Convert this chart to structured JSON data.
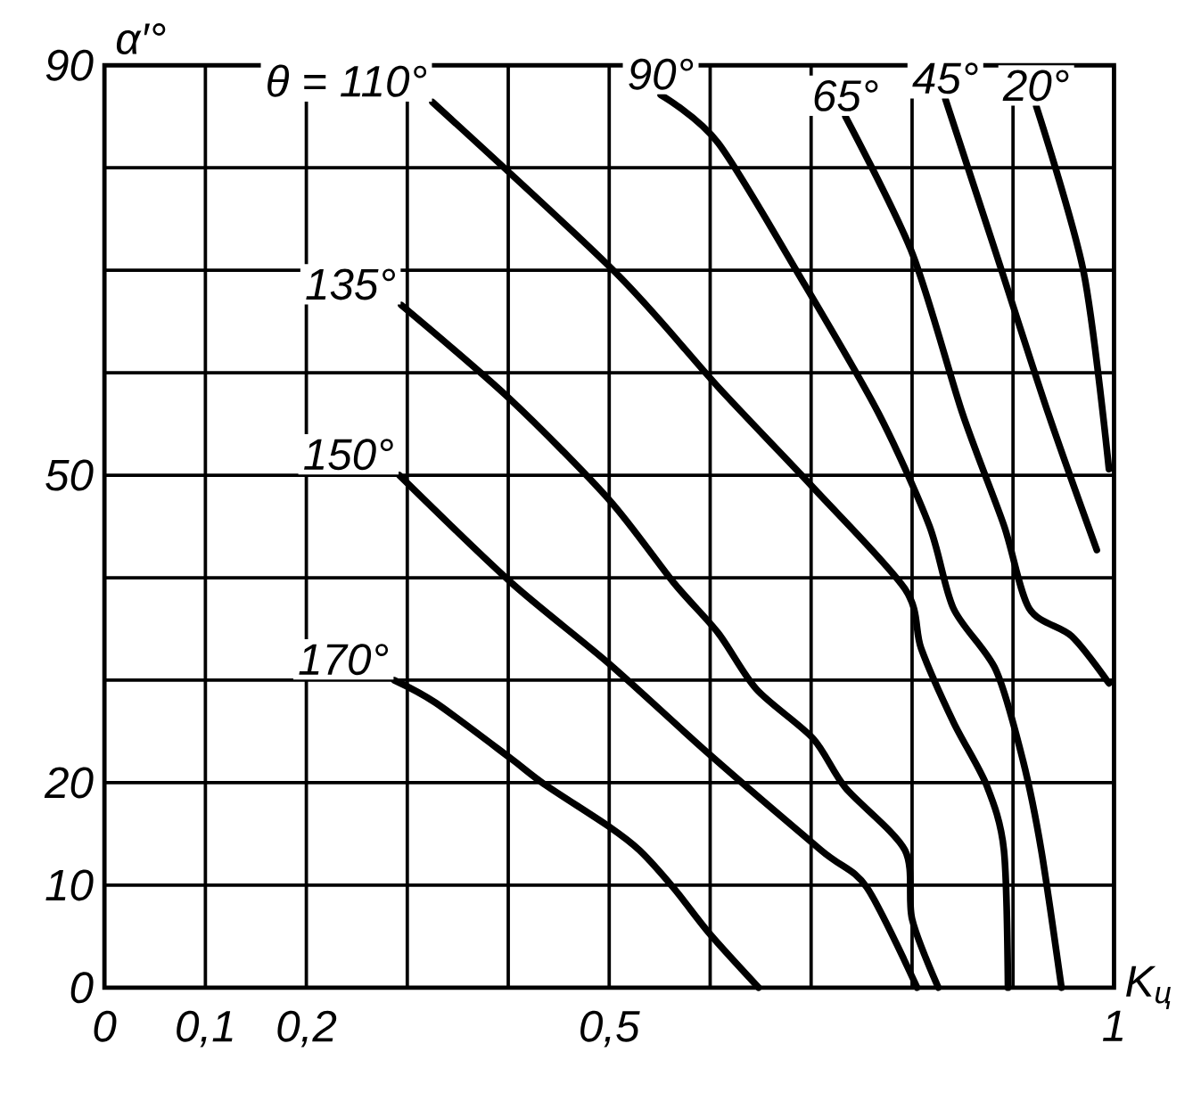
{
  "chart_data": {
    "type": "line",
    "xlabel": "K$_{ц}$",
    "ylabel": "α′°",
    "xlim": [
      0,
      1
    ],
    "ylim": [
      0,
      90
    ],
    "xticks": [
      0,
      {
        "value": 0.1,
        "label": "0,1"
      },
      {
        "value": 0.2,
        "label": "0,2"
      },
      {
        "value": 0.3,
        "label": null
      },
      {
        "value": 0.4,
        "label": null
      },
      {
        "value": 0.5,
        "label": "0,5"
      },
      {
        "value": 0.6,
        "label": null
      },
      {
        "value": 0.7,
        "label": null
      },
      {
        "value": 0.8,
        "label": null
      },
      {
        "value": 0.9,
        "label": null
      },
      1
    ],
    "yticks": [
      0,
      10,
      20,
      {
        "value": 30,
        "label": null
      },
      {
        "value": 40,
        "label": null
      },
      50,
      {
        "value": 60,
        "label": null
      },
      {
        "value": 70,
        "label": null
      },
      {
        "value": 80,
        "label": null
      },
      90
    ],
    "grid": true,
    "line_style": "solid",
    "series": [
      {
        "name": "θ = 110°",
        "color": "#000000",
        "x": [
          0.325,
          0.506,
          0.608,
          0.702,
          0.793,
          0.809,
          0.841,
          0.874,
          0.891,
          0.895
        ],
        "values": [
          86.4,
          69.8,
          58.6,
          48.8,
          38.9,
          33.1,
          25.9,
          19.7,
          13.4,
          0
        ]
      },
      {
        "name": "135°",
        "color": "#000000",
        "x": [
          0.294,
          0.402,
          0.5,
          0.564,
          0.608,
          0.646,
          0.702,
          0.734,
          0.793,
          0.8,
          0.826
        ],
        "values": [
          66.6,
          57.4,
          47.6,
          39.5,
          34.6,
          29.1,
          24.3,
          19.5,
          13.4,
          6.7,
          0
        ]
      },
      {
        "name": "150°",
        "color": "#000000",
        "x": [
          0.292,
          0.402,
          0.5,
          0.6,
          0.71,
          0.755,
          0.805
        ],
        "values": [
          50,
          39.6,
          31.6,
          22.7,
          13.4,
          9.8,
          0
        ]
      },
      {
        "name": "170°",
        "color": "#000000",
        "x": [
          0.287,
          0.328,
          0.402,
          0.435,
          0.5,
          0.53,
          0.564,
          0.6,
          0.648
        ],
        "values": [
          30,
          27.8,
          22.4,
          19.9,
          15.7,
          13.4,
          9.7,
          5.2,
          0
        ]
      },
      {
        "name": "90°",
        "color": "#000000",
        "x": [
          0.551,
          0.608,
          0.693,
          0.767,
          0.817,
          0.841,
          0.883,
          0.91,
          0.928,
          0.948
        ],
        "values": [
          87.1,
          82.4,
          68.7,
          56.0,
          45.1,
          37.0,
          31.0,
          22.1,
          13.4,
          0
        ]
      },
      {
        "name": "65°",
        "color": "#000000",
        "x": [
          0.734,
          0.8,
          0.85,
          0.891,
          0.916,
          0.958,
          0.995
        ],
        "values": [
          85,
          71.7,
          56.0,
          45.1,
          37.0,
          34.3,
          29.7
        ]
      },
      {
        "name": "45°",
        "color": "#000000",
        "x": [
          0.833,
          0.883,
          0.935,
          0.983
        ],
        "values": [
          86.7,
          71.7,
          56.0,
          42.7
        ]
      },
      {
        "name": "20°",
        "color": "#000000",
        "x": [
          0.923,
          0.97,
          0.995
        ],
        "values": [
          86,
          69.8,
          50.6
        ]
      }
    ]
  }
}
